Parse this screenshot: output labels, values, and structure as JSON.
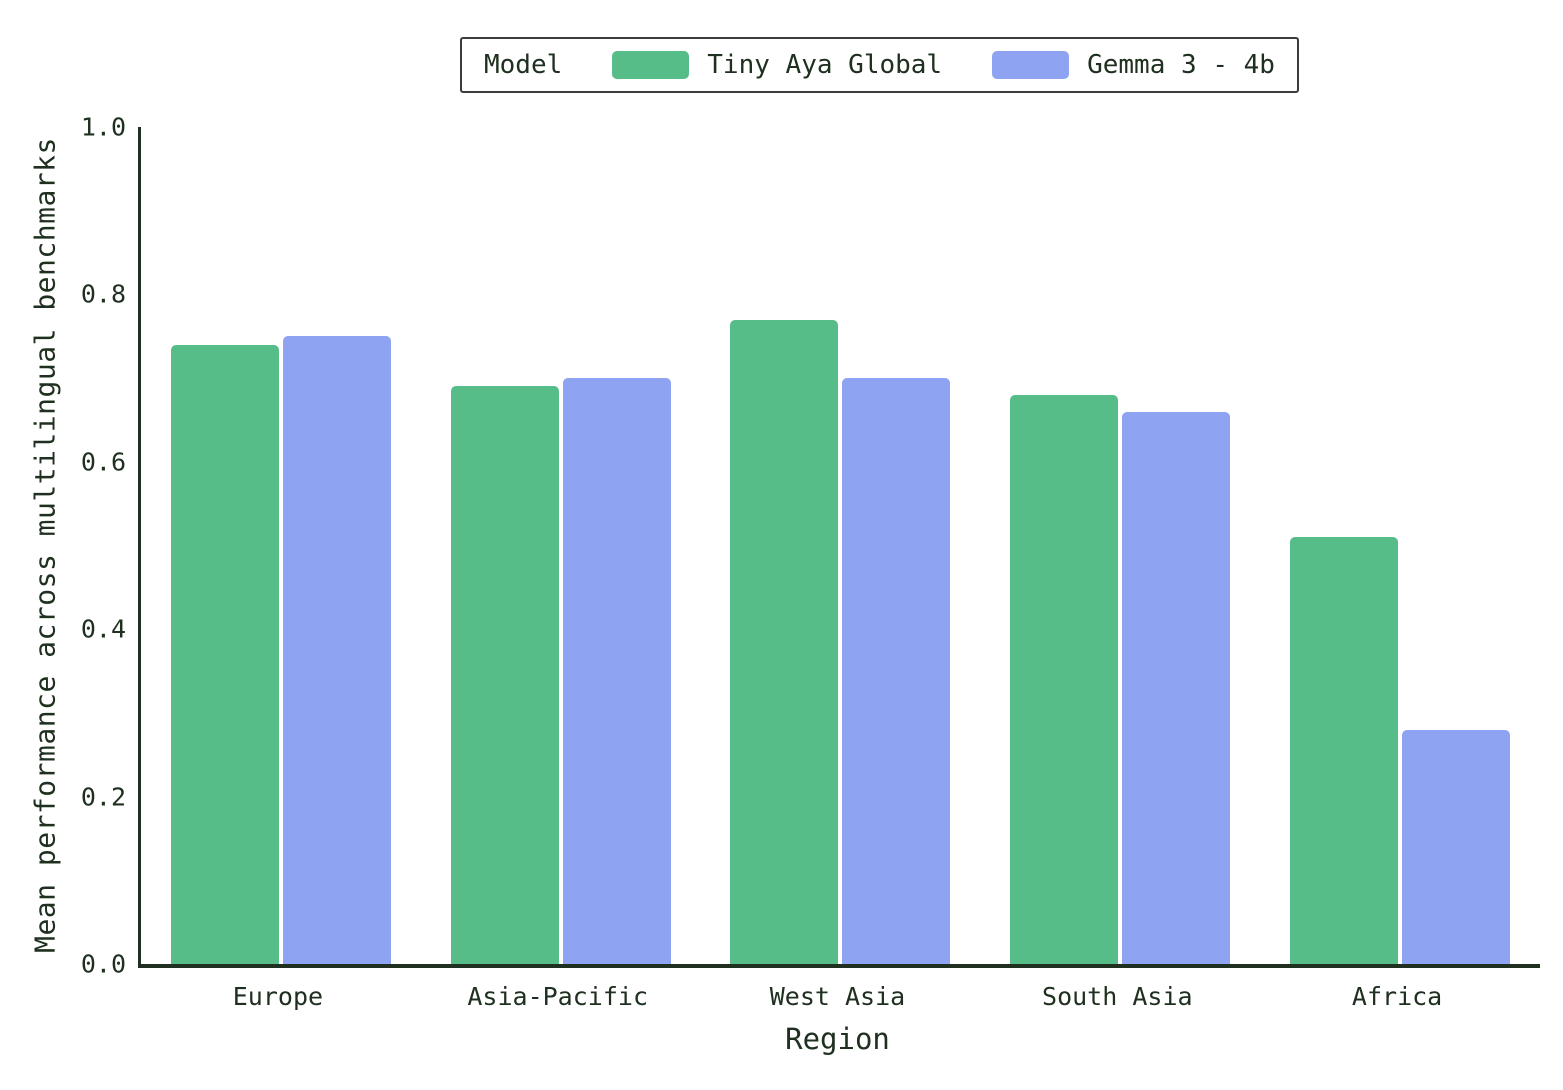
{
  "figure": {
    "background": "#ffffff",
    "text_color": "#203020",
    "axis_color": "#203020"
  },
  "legend": {
    "title": "Model",
    "position": "top-center",
    "border_color": "#3c3c3c"
  },
  "chart_data": {
    "type": "bar",
    "title": "",
    "xlabel": "Region",
    "ylabel": "Mean performance across multilingual benchmarks",
    "categories": [
      "Europe",
      "Asia-Pacific",
      "West Asia",
      "South Asia",
      "Africa"
    ],
    "series": [
      {
        "name": "Tiny Aya Global",
        "color": "#57bd88",
        "values": [
          0.74,
          0.69,
          0.77,
          0.68,
          0.51
        ]
      },
      {
        "name": "Gemma 3 - 4b",
        "color": "#8ea3f2",
        "values": [
          0.75,
          0.7,
          0.7,
          0.66,
          0.28
        ]
      }
    ],
    "ylim": [
      0.0,
      1.0
    ],
    "yticks": [
      0.0,
      0.2,
      0.4,
      0.6,
      0.8,
      1.0
    ],
    "grid": false,
    "legend_position": "top-center"
  }
}
